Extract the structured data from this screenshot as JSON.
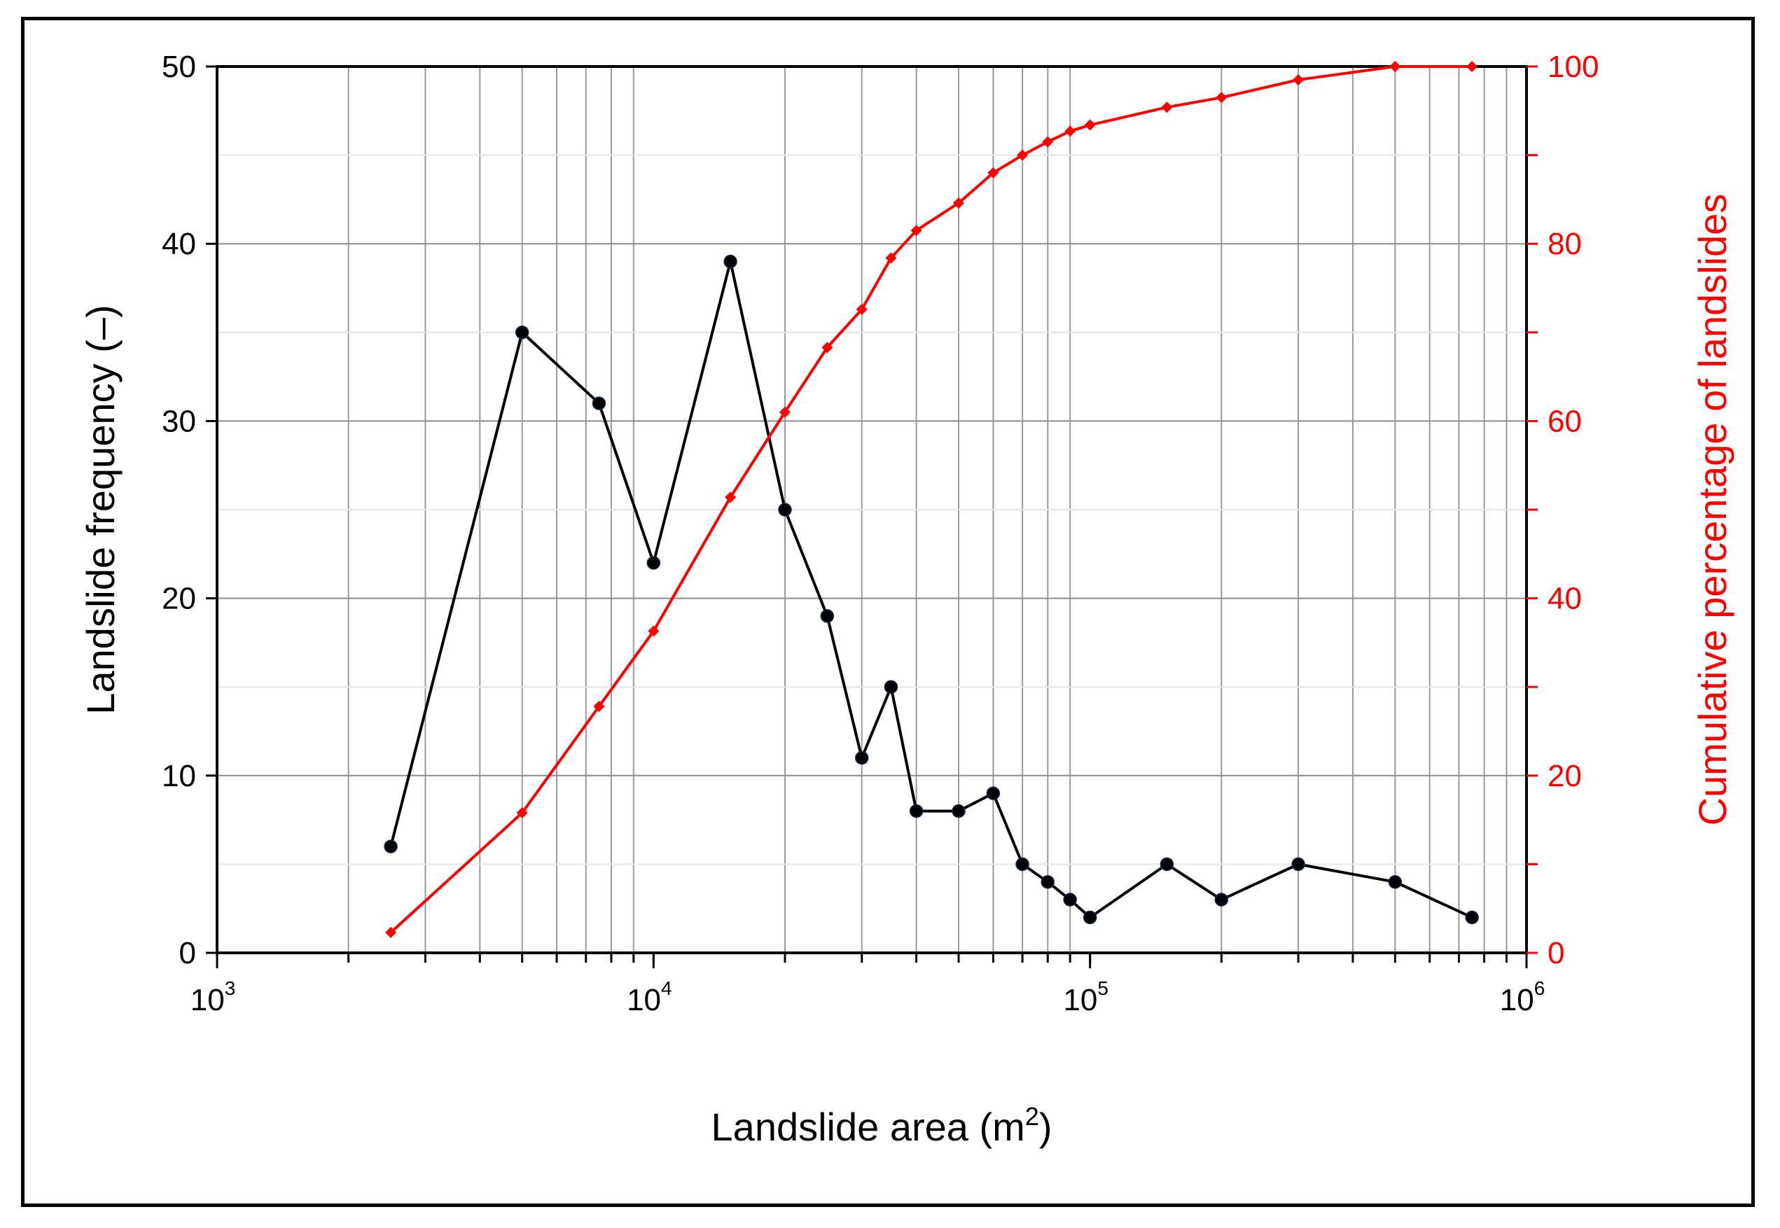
{
  "chart_data": {
    "type": "line",
    "xscale": "log",
    "xlim": [
      1000,
      1000000
    ],
    "x_ticks": [
      {
        "base": "10",
        "exp": "3"
      },
      {
        "base": "10",
        "exp": "4"
      },
      {
        "base": "10",
        "exp": "5"
      },
      {
        "base": "10",
        "exp": "6"
      }
    ],
    "xlabel": {
      "text": "Landslide area (m",
      "sup": "2",
      "tail": ")"
    },
    "ylabel_left": "Landslide frequency (–)",
    "ylabel_right": "Cumulative percentage of landslides",
    "ylim_left": [
      0,
      50
    ],
    "ylim_right": [
      0,
      100
    ],
    "y_ticks_left": [
      "0",
      "10",
      "20",
      "30",
      "40",
      "50"
    ],
    "y_ticks_right": [
      "0",
      "20",
      "40",
      "60",
      "80",
      "100"
    ],
    "grid": true,
    "series": [
      {
        "axis": "left",
        "color": "#000000",
        "marker": "circle",
        "x": [
          2500,
          5000,
          7500,
          10000,
          15000,
          20000,
          25000,
          30000,
          35000,
          40000,
          50000,
          60000,
          70000,
          80000,
          90000,
          100000,
          150000,
          200000,
          300000,
          500000,
          750000
        ],
        "values": [
          6,
          35,
          31,
          22,
          39,
          25,
          19,
          11,
          15,
          8,
          8,
          9,
          5,
          4,
          3,
          2,
          5,
          3,
          5,
          4,
          2
        ]
      },
      {
        "axis": "right",
        "color": "#ff0000",
        "marker": "diamond",
        "x": [
          2500,
          5000,
          7500,
          10000,
          15000,
          20000,
          25000,
          30000,
          35000,
          40000,
          50000,
          60000,
          70000,
          80000,
          90000,
          100000,
          150000,
          200000,
          300000,
          500000,
          750000
        ],
        "values": [
          2.3,
          15.8,
          27.8,
          36.3,
          51.4,
          61.0,
          68.3,
          72.6,
          78.4,
          81.5,
          84.6,
          88.0,
          90.0,
          91.5,
          92.7,
          93.4,
          95.4,
          96.5,
          98.5,
          100,
          100
        ]
      }
    ]
  }
}
